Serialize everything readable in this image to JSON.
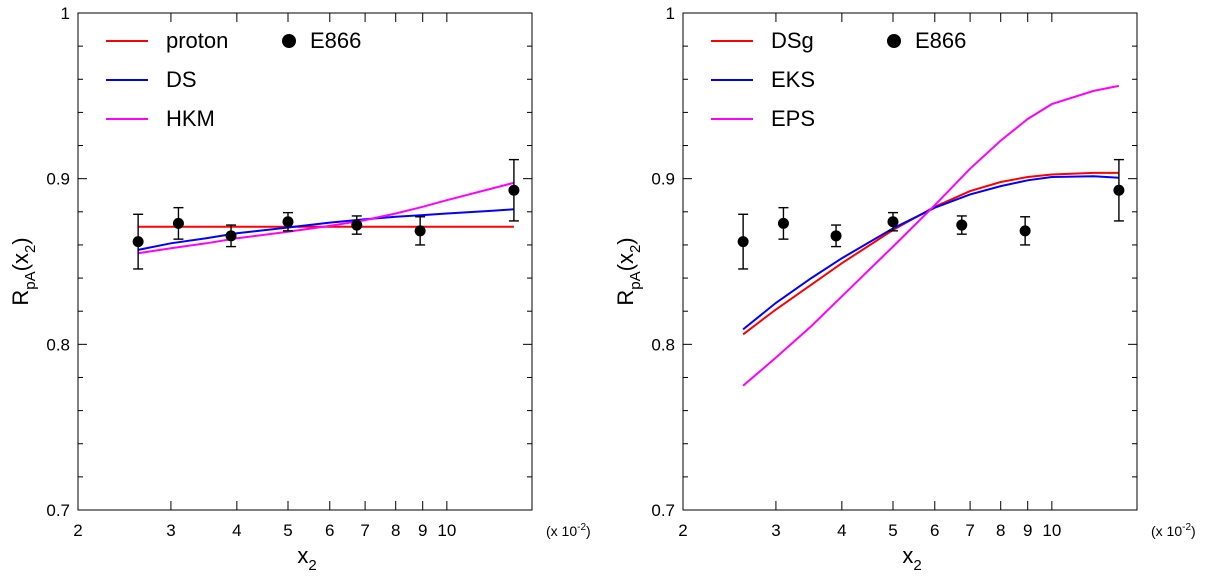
{
  "chart_data": [
    {
      "type": "line",
      "xscale": "log",
      "xlim": [
        2,
        14.5
      ],
      "ylim": [
        0.7,
        1.0
      ],
      "xlabel": "x",
      "xlabel_sub": "2",
      "ylabel": "R",
      "ylabel_sub": "pA",
      "ylabel_tail": "(x",
      "ylabel_tail_sub": "2",
      "ylabel_close": ")",
      "x_multiplier": "(x 10",
      "x_multiplier_exp": "-2",
      "x_multiplier_close": ")",
      "xticks": [
        {
          "value": 2,
          "label": "2"
        },
        {
          "value": 3,
          "label": "3"
        },
        {
          "value": 4,
          "label": "4"
        },
        {
          "value": 5,
          "label": "5"
        },
        {
          "value": 6,
          "label": "6"
        },
        {
          "value": 7,
          "label": "7"
        },
        {
          "value": 8,
          "label": "8"
        },
        {
          "value": 9,
          "label": "9"
        },
        {
          "value": 10,
          "label": "10"
        }
      ],
      "yticks": [
        {
          "value": 0.7,
          "label": "0.7"
        },
        {
          "value": 0.8,
          "label": "0.8"
        },
        {
          "value": 0.9,
          "label": "0.9"
        },
        {
          "value": 1.0,
          "label": "1"
        }
      ],
      "legend_position": "top-left",
      "series": [
        {
          "name": "proton",
          "color": "#ff0000",
          "x": [
            2.6,
            13.4
          ],
          "y": [
            0.871,
            0.871
          ]
        },
        {
          "name": "DS",
          "color": "#0000ff",
          "x": [
            2.6,
            3.0,
            3.5,
            4.0,
            5.0,
            6.0,
            7.0,
            8.0,
            9.0,
            10.0,
            12.0,
            13.4
          ],
          "y": [
            0.857,
            0.861,
            0.864,
            0.867,
            0.8705,
            0.8735,
            0.8755,
            0.877,
            0.878,
            0.879,
            0.8805,
            0.8815
          ]
        },
        {
          "name": "HKM",
          "color": "#ff00ff",
          "x": [
            2.6,
            3.0,
            3.5,
            4.0,
            5.0,
            6.0,
            7.0,
            8.0,
            9.0,
            10.0,
            12.0,
            13.4
          ],
          "y": [
            0.855,
            0.858,
            0.861,
            0.864,
            0.868,
            0.8715,
            0.875,
            0.879,
            0.883,
            0.887,
            0.8935,
            0.8975
          ]
        }
      ],
      "data_series": {
        "name": "E866",
        "points": [
          {
            "x": 2.6,
            "y": 0.862,
            "err": 0.0165
          },
          {
            "x": 3.1,
            "y": 0.873,
            "err": 0.0095
          },
          {
            "x": 3.9,
            "y": 0.8655,
            "err": 0.0065
          },
          {
            "x": 5.0,
            "y": 0.874,
            "err": 0.0055
          },
          {
            "x": 6.75,
            "y": 0.872,
            "err": 0.0055
          },
          {
            "x": 8.9,
            "y": 0.8685,
            "err": 0.0085
          },
          {
            "x": 13.4,
            "y": 0.893,
            "err": 0.0185
          }
        ]
      }
    },
    {
      "type": "line",
      "xscale": "log",
      "xlim": [
        2,
        14.5
      ],
      "ylim": [
        0.7,
        1.0
      ],
      "xlabel": "x",
      "xlabel_sub": "2",
      "ylabel": "R",
      "ylabel_sub": "pA",
      "ylabel_tail": "(x",
      "ylabel_tail_sub": "2",
      "ylabel_close": ")",
      "x_multiplier": "(x 10",
      "x_multiplier_exp": "-2",
      "x_multiplier_close": ")",
      "xticks": [
        {
          "value": 2,
          "label": "2"
        },
        {
          "value": 3,
          "label": "3"
        },
        {
          "value": 4,
          "label": "4"
        },
        {
          "value": 5,
          "label": "5"
        },
        {
          "value": 6,
          "label": "6"
        },
        {
          "value": 7,
          "label": "7"
        },
        {
          "value": 8,
          "label": "8"
        },
        {
          "value": 9,
          "label": "9"
        },
        {
          "value": 10,
          "label": "10"
        }
      ],
      "yticks": [
        {
          "value": 0.7,
          "label": "0.7"
        },
        {
          "value": 0.8,
          "label": "0.8"
        },
        {
          "value": 0.9,
          "label": "0.9"
        },
        {
          "value": 1.0,
          "label": "1"
        }
      ],
      "legend_position": "top-left",
      "series": [
        {
          "name": "DSg",
          "color": "#ff0000",
          "x": [
            2.6,
            3.0,
            3.5,
            4.0,
            5.0,
            6.0,
            7.0,
            8.0,
            9.0,
            10.0,
            12.0,
            13.4
          ],
          "y": [
            0.806,
            0.821,
            0.836,
            0.849,
            0.869,
            0.883,
            0.8925,
            0.898,
            0.901,
            0.9025,
            0.9035,
            0.9035
          ]
        },
        {
          "name": "EKS",
          "color": "#0000ff",
          "x": [
            2.6,
            3.0,
            3.5,
            4.0,
            5.0,
            6.0,
            7.0,
            8.0,
            9.0,
            10.0,
            12.0,
            13.4
          ],
          "y": [
            0.809,
            0.825,
            0.84,
            0.852,
            0.87,
            0.8825,
            0.8905,
            0.8955,
            0.899,
            0.901,
            0.9015,
            0.9005
          ]
        },
        {
          "name": "EPS",
          "color": "#ff00ff",
          "x": [
            2.6,
            3.0,
            3.5,
            4.0,
            5.0,
            6.0,
            7.0,
            8.0,
            9.0,
            10.0,
            12.0,
            13.4
          ],
          "y": [
            0.775,
            0.792,
            0.811,
            0.829,
            0.859,
            0.884,
            0.906,
            0.923,
            0.936,
            0.945,
            0.953,
            0.956
          ]
        }
      ],
      "data_series": {
        "name": "E866",
        "points": [
          {
            "x": 2.6,
            "y": 0.862,
            "err": 0.0165
          },
          {
            "x": 3.1,
            "y": 0.873,
            "err": 0.0095
          },
          {
            "x": 3.9,
            "y": 0.8655,
            "err": 0.0065
          },
          {
            "x": 5.0,
            "y": 0.874,
            "err": 0.0055
          },
          {
            "x": 6.75,
            "y": 0.872,
            "err": 0.0055
          },
          {
            "x": 8.9,
            "y": 0.8685,
            "err": 0.0085
          },
          {
            "x": 13.4,
            "y": 0.893,
            "err": 0.0185
          }
        ]
      }
    }
  ]
}
